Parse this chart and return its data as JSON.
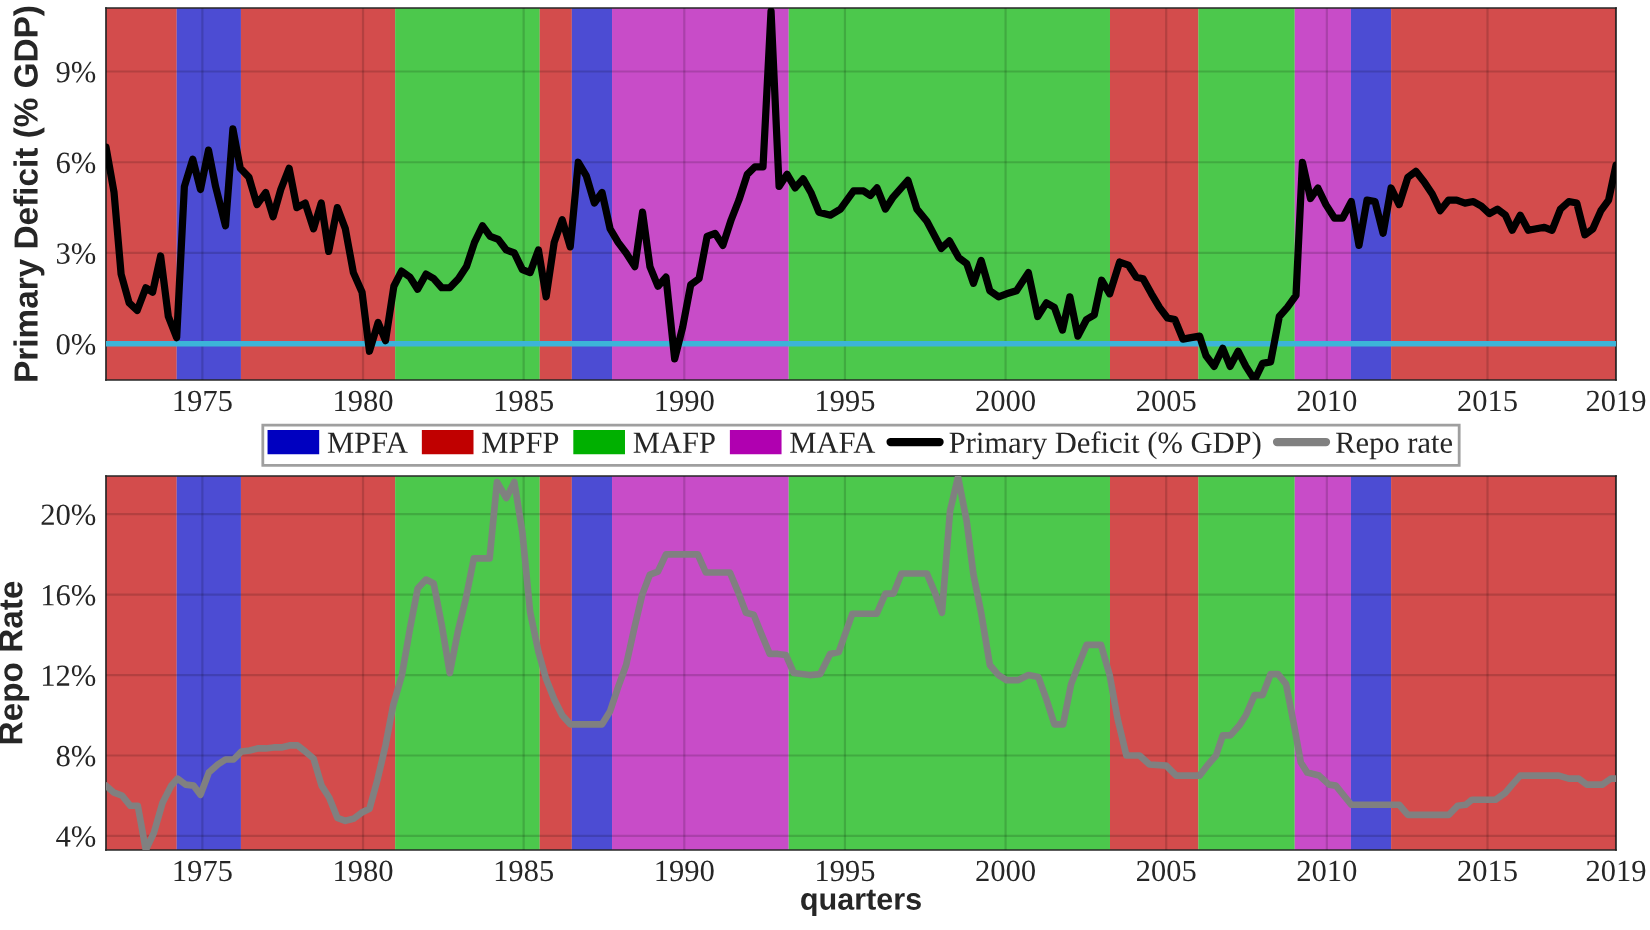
{
  "chart_data": [
    {
      "type": "line",
      "ylabel": "Primary Deficit (% GDP)",
      "xlim": [
        1972,
        2019
      ],
      "ylim": [
        -1.2,
        11.1
      ],
      "xticks": [
        1975,
        1980,
        1985,
        1990,
        1995,
        2000,
        2005,
        2010,
        2015,
        2019
      ],
      "yticks": [
        {
          "value": 0,
          "label": "0%"
        },
        {
          "value": 3,
          "label": "3%"
        },
        {
          "value": 6,
          "label": "6%"
        },
        {
          "value": 9,
          "label": "9%"
        }
      ],
      "grid": true,
      "legend": "bottom",
      "bands": [
        {
          "axis": "x",
          "from": 1972,
          "to": 1974.2,
          "color": "#c00000"
        },
        {
          "axis": "x",
          "from": 1974.2,
          "to": 1976.2,
          "label": "MPFA",
          "color": "#0000c0"
        },
        {
          "axis": "x",
          "from": 1976.2,
          "to": 1981.0,
          "color": "#c00000"
        },
        {
          "axis": "x",
          "from": 1981.0,
          "to": 1985.5,
          "color": "#00b000"
        },
        {
          "axis": "x",
          "from": 1985.5,
          "to": 1986.5,
          "color": "#c00000"
        },
        {
          "axis": "x",
          "from": 1986.5,
          "to": 1987.75,
          "color": "#0000c0"
        },
        {
          "axis": "x",
          "from": 1987.75,
          "to": 1993.25,
          "color": "#b000b0"
        },
        {
          "axis": "x",
          "from": 1993.25,
          "to": 2003.25,
          "color": "#00b000"
        },
        {
          "axis": "x",
          "from": 2003.25,
          "to": 2006.0,
          "color": "#c00000"
        },
        {
          "axis": "x",
          "from": 2006.0,
          "to": 2009.0,
          "color": "#00b000"
        },
        {
          "axis": "x",
          "from": 2009.0,
          "to": 2010.75,
          "color": "#b000b0"
        },
        {
          "axis": "x",
          "from": 2010.75,
          "to": 2012.0,
          "color": "#0000c0"
        },
        {
          "axis": "x",
          "from": 2012.0,
          "to": 2019,
          "color": "#c00000"
        }
      ],
      "ref_lines": [
        {
          "axis": "y",
          "value": 0,
          "color": "#3cb4d8"
        }
      ],
      "series": [
        {
          "name": "Primary Deficit (% GDP)",
          "color": "#000000",
          "x": [
            1972.0,
            1972.25,
            1972.47,
            1972.72,
            1972.97,
            1973.24,
            1973.45,
            1973.7,
            1973.94,
            1974.2,
            1974.44,
            1974.7,
            1974.94,
            1975.19,
            1975.41,
            1975.72,
            1975.95,
            1976.18,
            1976.45,
            1976.7,
            1976.97,
            1977.2,
            1977.44,
            1977.7,
            1977.94,
            1978.2,
            1978.46,
            1978.7,
            1978.93,
            1979.2,
            1979.45,
            1979.7,
            1979.97,
            1980.2,
            1980.47,
            1980.7,
            1980.96,
            1981.2,
            1981.46,
            1981.7,
            1981.96,
            1982.2,
            1982.45,
            1982.7,
            1982.97,
            1983.22,
            1983.47,
            1983.72,
            1983.96,
            1984.21,
            1984.46,
            1984.71,
            1984.96,
            1985.2,
            1985.46,
            1985.7,
            1985.95,
            1986.2,
            1986.45,
            1986.7,
            1986.95,
            1987.2,
            1987.44,
            1987.69,
            1987.94,
            1988.19,
            1988.46,
            1988.7,
            1988.93,
            1989.18,
            1989.43,
            1989.7,
            1989.95,
            1990.2,
            1990.46,
            1990.71,
            1990.96,
            1991.2,
            1991.46,
            1991.7,
            1991.96,
            1992.2,
            1992.45,
            1992.7,
            1992.95,
            1993.2,
            1993.45,
            1993.7,
            1993.94,
            1994.19,
            1994.55,
            1994.86,
            1995.27,
            1995.58,
            1995.79,
            1996.0,
            1996.26,
            1996.5,
            1996.96,
            1997.24,
            1997.55,
            1998.0,
            1998.25,
            1998.54,
            1998.79,
            1999.0,
            1999.24,
            1999.51,
            1999.78,
            2000.03,
            2000.34,
            2000.71,
            2001.0,
            2001.27,
            2001.52,
            2001.77,
            2002.0,
            2002.25,
            2002.52,
            2002.76,
            2002.99,
            2003.24,
            2003.55,
            2003.82,
            2004.07,
            2004.28,
            2004.54,
            2004.79,
            2005.04,
            2005.27,
            2005.52,
            2005.77,
            2006.04,
            2006.24,
            2006.49,
            2006.76,
            2006.99,
            2007.24,
            2007.48,
            2007.75,
            2008.0,
            2008.25,
            2008.52,
            2008.77,
            2009.04,
            2009.24,
            2009.49,
            2009.72,
            2009.97,
            2010.24,
            2010.49,
            2010.76,
            2011.0,
            2011.25,
            2011.5,
            2011.75,
            2012.0,
            2012.25,
            2012.52,
            2012.77,
            2013.03,
            2013.28,
            2013.53,
            2013.79,
            2014.04,
            2014.3,
            2014.56,
            2014.81,
            2015.06,
            2015.31,
            2015.56,
            2015.77,
            2016.02,
            2016.27,
            2016.52,
            2016.77,
            2017.01,
            2017.27,
            2017.53,
            2017.78,
            2018.03,
            2018.28,
            2018.53,
            2018.77,
            2019.0
          ],
          "values": [
            6.5,
            5.0,
            2.3,
            1.35,
            1.1,
            1.85,
            1.7,
            2.9,
            0.9,
            0.2,
            5.2,
            6.1,
            5.1,
            6.4,
            5.2,
            3.9,
            7.1,
            5.8,
            5.5,
            4.6,
            5.0,
            4.2,
            5.1,
            5.8,
            4.5,
            4.65,
            3.8,
            4.65,
            3.05,
            4.5,
            3.8,
            2.35,
            1.7,
            -0.25,
            0.7,
            0.1,
            1.9,
            2.4,
            2.2,
            1.8,
            2.3,
            2.15,
            1.85,
            1.85,
            2.15,
            2.55,
            3.35,
            3.9,
            3.55,
            3.45,
            3.1,
            3.0,
            2.45,
            2.35,
            3.1,
            1.55,
            3.35,
            4.1,
            3.2,
            6.0,
            5.55,
            4.65,
            5.0,
            3.8,
            3.35,
            3.0,
            2.55,
            4.35,
            2.55,
            1.9,
            2.2,
            -0.5,
            0.55,
            1.95,
            2.15,
            3.55,
            3.65,
            3.25,
            4.1,
            4.75,
            5.6,
            5.85,
            5.85,
            11.0,
            5.2,
            5.6,
            5.15,
            5.45,
            5.0,
            4.35,
            4.25,
            4.45,
            5.05,
            5.05,
            4.9,
            5.15,
            4.45,
            4.85,
            5.4,
            4.45,
            4.05,
            3.15,
            3.4,
            2.85,
            2.65,
            2.0,
            2.75,
            1.75,
            1.55,
            1.65,
            1.75,
            2.35,
            0.9,
            1.35,
            1.2,
            0.45,
            1.55,
            0.25,
            0.8,
            0.95,
            2.1,
            1.65,
            2.7,
            2.6,
            2.2,
            2.15,
            1.65,
            1.2,
            0.85,
            0.8,
            0.15,
            0.2,
            0.25,
            -0.4,
            -0.75,
            -0.15,
            -0.75,
            -0.25,
            -0.75,
            -1.2,
            -0.65,
            -0.6,
            0.9,
            1.2,
            1.6,
            6.0,
            4.8,
            5.15,
            4.6,
            4.15,
            4.15,
            4.7,
            3.25,
            4.75,
            4.7,
            3.65,
            5.15,
            4.6,
            5.5,
            5.7,
            5.35,
            4.95,
            4.4,
            4.75,
            4.75,
            4.65,
            4.7,
            4.55,
            4.3,
            4.45,
            4.25,
            3.75,
            4.25,
            3.75,
            3.8,
            3.85,
            3.75,
            4.45,
            4.7,
            4.65,
            3.6,
            3.8,
            4.4,
            4.75,
            5.9
          ]
        }
      ]
    },
    {
      "type": "line",
      "ylabel": "Repo Rate",
      "xlabel": "quarters",
      "xlim": [
        1972,
        2019
      ],
      "ylim": [
        3.3,
        21.9
      ],
      "xticks": [
        1975,
        1980,
        1985,
        1990,
        1995,
        2000,
        2005,
        2010,
        2015,
        2019
      ],
      "yticks": [
        {
          "value": 4,
          "label": "4%"
        },
        {
          "value": 8,
          "label": "8%"
        },
        {
          "value": 12,
          "label": "12%"
        },
        {
          "value": 16,
          "label": "16%"
        },
        {
          "value": 20,
          "label": "20%"
        }
      ],
      "grid": true,
      "legend": "top",
      "bands": [
        {
          "axis": "x",
          "from": 1972,
          "to": 1974.2,
          "label": "MPFP",
          "color": "#c00000"
        },
        {
          "axis": "x",
          "from": 1974.2,
          "to": 1976.2,
          "color": "#0000c0"
        },
        {
          "axis": "x",
          "from": 1976.2,
          "to": 1981.0,
          "color": "#c00000"
        },
        {
          "axis": "x",
          "from": 1981.0,
          "to": 1985.5,
          "label": "MAFP",
          "color": "#00b000"
        },
        {
          "axis": "x",
          "from": 1985.5,
          "to": 1986.5,
          "color": "#c00000"
        },
        {
          "axis": "x",
          "from": 1986.5,
          "to": 1987.75,
          "color": "#0000c0"
        },
        {
          "axis": "x",
          "from": 1987.75,
          "to": 1993.25,
          "label": "MAFA",
          "color": "#b000b0"
        },
        {
          "axis": "x",
          "from": 1993.25,
          "to": 2003.25,
          "color": "#00b000"
        },
        {
          "axis": "x",
          "from": 2003.25,
          "to": 2006.0,
          "color": "#c00000"
        },
        {
          "axis": "x",
          "from": 2006.0,
          "to": 2009.0,
          "color": "#00b000"
        },
        {
          "axis": "x",
          "from": 2009.0,
          "to": 2010.75,
          "color": "#b000b0"
        },
        {
          "axis": "x",
          "from": 2010.75,
          "to": 2012.0,
          "color": "#0000c0"
        },
        {
          "axis": "x",
          "from": 2012.0,
          "to": 2019,
          "color": "#c00000"
        }
      ],
      "series": [
        {
          "name": "Repo rate",
          "color": "#808080",
          "x": [
            1972.0,
            1972.25,
            1972.5,
            1972.76,
            1972.99,
            1973.24,
            1973.49,
            1973.76,
            1974.03,
            1974.23,
            1974.48,
            1974.73,
            1974.94,
            1975.2,
            1975.48,
            1975.72,
            1975.97,
            1976.22,
            1976.47,
            1976.72,
            1976.97,
            1977.22,
            1977.46,
            1977.71,
            1977.96,
            1978.2,
            1978.46,
            1978.71,
            1978.95,
            1979.2,
            1979.45,
            1979.7,
            1979.95,
            1980.2,
            1980.45,
            1980.7,
            1980.94,
            1981.21,
            1981.46,
            1981.7,
            1981.96,
            1982.2,
            1982.45,
            1982.7,
            1982.95,
            1983.2,
            1983.45,
            1983.7,
            1983.94,
            1984.17,
            1984.46,
            1984.71,
            1984.96,
            1985.2,
            1985.46,
            1985.7,
            1985.95,
            1986.2,
            1986.45,
            1986.7,
            1986.95,
            1987.2,
            1987.44,
            1987.69,
            1987.94,
            1988.19,
            1988.44,
            1988.69,
            1988.93,
            1989.18,
            1989.43,
            1989.68,
            1989.93,
            1990.18,
            1990.42,
            1990.67,
            1990.92,
            1991.17,
            1991.42,
            1991.67,
            1991.92,
            1992.16,
            1992.41,
            1992.66,
            1992.91,
            1993.16,
            1993.41,
            1993.66,
            1993.9,
            1994.23,
            1994.54,
            1994.81,
            1995.23,
            1995.48,
            1995.99,
            1996.26,
            1996.51,
            1996.76,
            1997.24,
            1997.55,
            1997.8,
            1998.02,
            1998.27,
            1998.52,
            1998.79,
            1999.0,
            1999.24,
            1999.51,
            1999.78,
            2000.03,
            2000.4,
            2000.71,
            2001.02,
            2001.27,
            2001.52,
            2001.79,
            2002.04,
            2002.27,
            2002.52,
            2002.97,
            2003.24,
            2003.49,
            2003.76,
            2004.17,
            2004.48,
            2005.0,
            2005.31,
            2006.04,
            2006.28,
            2006.55,
            2006.76,
            2007.0,
            2007.28,
            2007.48,
            2007.75,
            2008.0,
            2008.25,
            2008.48,
            2008.73,
            2008.98,
            2009.19,
            2009.39,
            2009.76,
            2010.07,
            2010.28,
            2010.76,
            2012.04,
            2012.25,
            2012.52,
            2013.8,
            2014.07,
            2014.32,
            2014.52,
            2015.25,
            2015.56,
            2015.77,
            2016.02,
            2017.22,
            2017.53,
            2017.84,
            2018.09,
            2018.57,
            2018.84,
            2019.0
          ],
          "values": [
            6.5,
            6.15,
            6.0,
            5.5,
            5.5,
            3.3,
            4.15,
            5.65,
            6.5,
            6.85,
            6.55,
            6.5,
            6.05,
            7.15,
            7.55,
            7.8,
            7.8,
            8.2,
            8.25,
            8.35,
            8.35,
            8.4,
            8.4,
            8.5,
            8.5,
            8.2,
            7.85,
            6.5,
            5.9,
            4.9,
            4.75,
            4.85,
            5.15,
            5.35,
            6.8,
            8.5,
            10.5,
            12.0,
            14.3,
            16.3,
            16.75,
            16.55,
            14.5,
            12.1,
            14.15,
            15.8,
            17.8,
            17.8,
            17.8,
            21.6,
            20.8,
            21.6,
            19.1,
            15.15,
            13.15,
            11.8,
            10.8,
            10.0,
            9.55,
            9.55,
            9.55,
            9.55,
            9.55,
            10.2,
            11.4,
            12.5,
            14.3,
            16.0,
            17.0,
            17.15,
            18.0,
            18.0,
            18.0,
            18.0,
            18.0,
            17.1,
            17.1,
            17.1,
            17.1,
            16.15,
            15.1,
            15.0,
            14.0,
            13.05,
            13.05,
            13.0,
            12.1,
            12.05,
            12.0,
            12.05,
            13.05,
            13.15,
            15.05,
            15.05,
            15.05,
            16.05,
            16.05,
            17.05,
            17.05,
            17.05,
            16.1,
            15.1,
            20.15,
            21.85,
            19.65,
            17.0,
            15.1,
            12.5,
            12.0,
            11.75,
            11.75,
            12.0,
            11.9,
            10.8,
            9.55,
            9.55,
            11.55,
            12.5,
            13.5,
            13.5,
            12.0,
            9.8,
            8.0,
            8.0,
            7.55,
            7.5,
            7.0,
            7.0,
            7.5,
            8.0,
            9.0,
            9.0,
            9.5,
            10.0,
            11.0,
            11.0,
            12.05,
            12.05,
            11.55,
            9.5,
            7.65,
            7.15,
            7.0,
            6.55,
            6.5,
            5.55,
            5.55,
            5.55,
            5.05,
            5.05,
            5.5,
            5.55,
            5.8,
            5.8,
            6.15,
            6.55,
            7.0,
            7.0,
            6.85,
            6.85,
            6.55,
            6.55,
            6.85,
            6.85
          ]
        }
      ]
    }
  ]
}
